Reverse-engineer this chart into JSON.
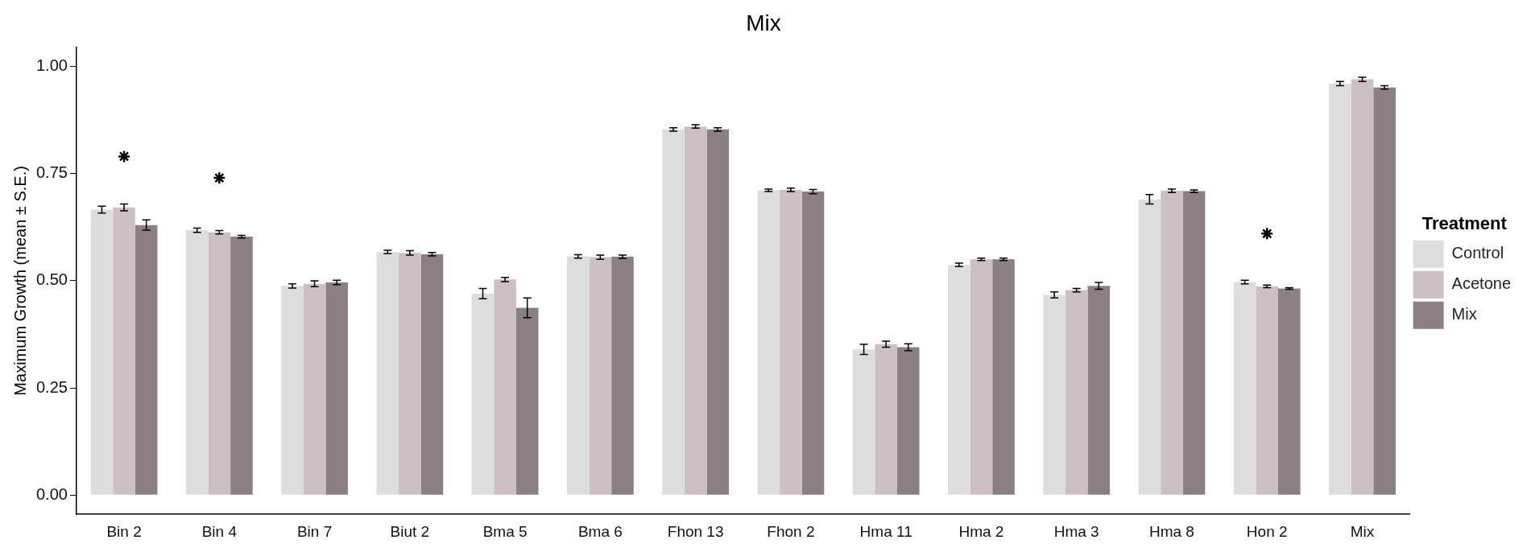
{
  "chart_data": {
    "type": "bar",
    "title": "Mix",
    "ylabel": "Maximum Growth (mean ± S.E.)",
    "legend_title": "Treatment",
    "legend": "right",
    "categories": [
      "Bin 2",
      "Bin 4",
      "Bin 7",
      "Biut 2",
      "Bma 5",
      "Bma 6",
      "Fhon 13",
      "Fhon 2",
      "Hma 11",
      "Hma 2",
      "Hma 3",
      "Hma 8",
      "Hon 2",
      "Mix"
    ],
    "series": [
      {
        "name": "Control",
        "color": "#dddddd",
        "values": [
          0.666,
          0.618,
          0.488,
          0.567,
          0.47,
          0.557,
          0.853,
          0.711,
          0.34,
          0.537,
          0.467,
          0.69,
          0.497,
          0.96
        ],
        "errors": [
          0.008,
          0.005,
          0.005,
          0.004,
          0.012,
          0.004,
          0.004,
          0.003,
          0.012,
          0.004,
          0.007,
          0.011,
          0.004,
          0.005
        ]
      },
      {
        "name": "Acetone",
        "color": "#cdc0c4",
        "values": [
          0.671,
          0.613,
          0.493,
          0.565,
          0.503,
          0.555,
          0.86,
          0.712,
          0.352,
          0.55,
          0.478,
          0.71,
          0.487,
          0.97
        ],
        "errors": [
          0.008,
          0.004,
          0.007,
          0.005,
          0.005,
          0.005,
          0.004,
          0.004,
          0.007,
          0.003,
          0.004,
          0.004,
          0.003,
          0.005
        ]
      },
      {
        "name": "Mix",
        "color": "#8a8084",
        "values": [
          0.63,
          0.603,
          0.496,
          0.562,
          0.437,
          0.556,
          0.853,
          0.708,
          0.345,
          0.55,
          0.488,
          0.709,
          0.482,
          0.951
        ],
        "errors": [
          0.012,
          0.003,
          0.005,
          0.004,
          0.023,
          0.004,
          0.004,
          0.005,
          0.008,
          0.003,
          0.008,
          0.003,
          0.002,
          0.004
        ]
      },
      {
        "type": "scatter",
        "marker": "cross",
        "color": "#000000",
        "x": [
          "Bin 2",
          "Bin 4",
          "Hon 2"
        ],
        "values": [
          0.79,
          0.74,
          0.61
        ]
      }
    ],
    "ylim": [
      -0.045,
      1.045
    ],
    "yticks": [
      {
        "value": 0,
        "label": "0.00"
      },
      {
        "value": 0.25,
        "label": "0.25"
      },
      {
        "value": 0.5,
        "label": "0.50"
      },
      {
        "value": 0.75,
        "label": "0.75"
      },
      {
        "value": 1,
        "label": "1.00"
      }
    ],
    "grid": false
  }
}
